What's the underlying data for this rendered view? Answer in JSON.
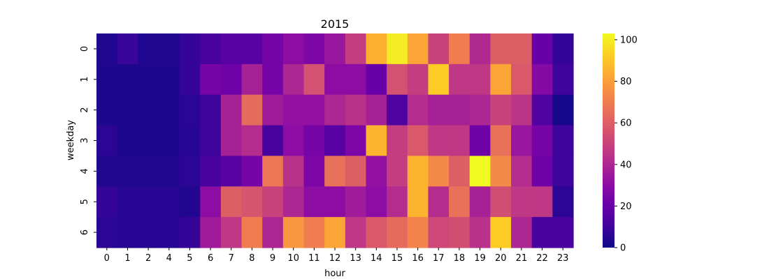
{
  "chart_data": {
    "type": "heatmap",
    "title": "2015",
    "xlabel": "hour",
    "ylabel": "weekday",
    "x_categories": [
      "0",
      "1",
      "2",
      "4",
      "5",
      "6",
      "7",
      "8",
      "9",
      "10",
      "11",
      "12",
      "13",
      "14",
      "15",
      "16",
      "17",
      "18",
      "19",
      "20",
      "21",
      "22",
      "23"
    ],
    "y_categories": [
      "0",
      "1",
      "2",
      "3",
      "4",
      "5",
      "6"
    ],
    "values": [
      [
        4,
        9,
        4,
        4,
        8,
        12,
        16,
        16,
        24,
        30,
        26,
        34,
        48,
        85,
        100,
        82,
        50,
        70,
        41,
        60,
        60,
        20,
        8
      ],
      [
        3,
        3,
        3,
        3,
        8,
        24,
        22,
        38,
        24,
        40,
        55,
        30,
        30,
        20,
        55,
        48,
        92,
        46,
        46,
        82,
        58,
        28,
        10
      ],
      [
        3,
        3,
        3,
        3,
        6,
        10,
        38,
        64,
        36,
        32,
        32,
        40,
        44,
        38,
        14,
        42,
        38,
        38,
        40,
        50,
        45,
        14,
        2
      ],
      [
        6,
        3,
        3,
        3,
        5,
        10,
        38,
        42,
        12,
        30,
        24,
        16,
        26,
        86,
        48,
        58,
        46,
        46,
        22,
        66,
        34,
        24,
        10
      ],
      [
        4,
        4,
        4,
        4,
        6,
        12,
        16,
        24,
        68,
        44,
        26,
        66,
        60,
        32,
        48,
        86,
        74,
        60,
        103,
        74,
        42,
        22,
        10
      ],
      [
        8,
        5,
        5,
        5,
        4,
        30,
        60,
        56,
        50,
        40,
        30,
        30,
        36,
        30,
        42,
        86,
        42,
        66,
        38,
        54,
        46,
        46,
        6
      ],
      [
        6,
        5,
        5,
        5,
        8,
        36,
        46,
        70,
        40,
        78,
        70,
        82,
        46,
        58,
        64,
        72,
        52,
        54,
        44,
        92,
        40,
        12,
        12
      ]
    ],
    "colorbar": {
      "min": 0,
      "max": 103,
      "ticks": [
        0,
        20,
        40,
        60,
        80,
        100
      ]
    },
    "colormap": "plasma"
  }
}
